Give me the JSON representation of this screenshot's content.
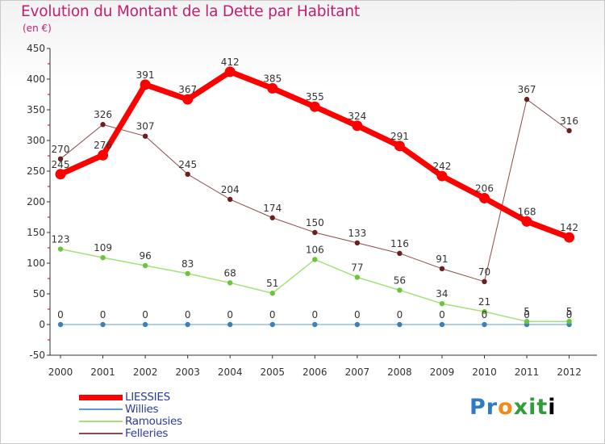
{
  "header": {
    "title": "Evolution du Montant de la Dette par Habitant",
    "subtitle": "(en €)"
  },
  "logo": {
    "text": "Proxiti"
  },
  "colors": {
    "title": "#c0206e",
    "axis": "#333333",
    "grid_tick": "#cc0000",
    "legend_text": "#2d3b9d"
  },
  "chart_data": {
    "type": "line",
    "x": [
      "2000",
      "2001",
      "2002",
      "2003",
      "2004",
      "2005",
      "2006",
      "2007",
      "2008",
      "2009",
      "2010",
      "2011",
      "2012"
    ],
    "ylim": [
      -50,
      450
    ],
    "yticks": [
      -50,
      0,
      50,
      100,
      150,
      200,
      250,
      300,
      350,
      400,
      450
    ],
    "legend_position": "bottom-left",
    "grid": false,
    "series": [
      {
        "name": "LIESSIES",
        "color": "#ff0000",
        "line_width": 7,
        "marker_color": "#ff0000",
        "values": [
          245,
          276,
          391,
          367,
          412,
          385,
          355,
          324,
          291,
          242,
          206,
          168,
          142
        ]
      },
      {
        "name": "Willies",
        "color": "#5b9bd5",
        "line_width": 1,
        "marker_color": "#3f7fb8",
        "values": [
          0,
          0,
          0,
          0,
          0,
          0,
          0,
          0,
          0,
          0,
          0,
          0,
          0
        ]
      },
      {
        "name": "Ramousies",
        "color": "#a6e07a",
        "line_width": 1.5,
        "marker_color": "#6cc43c",
        "values": [
          123,
          109,
          96,
          83,
          68,
          51,
          106,
          77,
          56,
          34,
          21,
          5,
          5
        ]
      },
      {
        "name": "Felleries",
        "color": "#8b4a4a",
        "line_width": 1,
        "marker_color": "#6b1f1f",
        "values": [
          270,
          326,
          307,
          245,
          204,
          174,
          150,
          133,
          116,
          91,
          70,
          367,
          316
        ]
      }
    ],
    "data_labels": [
      {
        "series": "LIESSIES",
        "labels": [
          "245",
          "276",
          "391",
          "367",
          "412",
          "385",
          "355",
          "324",
          "291",
          "242",
          "206",
          "168",
          "142"
        ]
      },
      {
        "series": "Willies",
        "labels": [
          "0",
          "0",
          "0",
          "0",
          "0",
          "0",
          "0",
          "0",
          "0",
          "0",
          "0",
          "0",
          "0"
        ]
      },
      {
        "series": "Ramousies",
        "labels": [
          "123",
          "109",
          "96",
          "83",
          "68",
          "51",
          "106",
          "77",
          "56",
          "34",
          "21",
          "5",
          "5"
        ]
      },
      {
        "series": "Felleries",
        "labels": [
          "270",
          "326",
          "307",
          "245",
          "204",
          "174",
          "150",
          "133",
          "116",
          "91",
          "70",
          "367",
          "316"
        ]
      }
    ]
  }
}
